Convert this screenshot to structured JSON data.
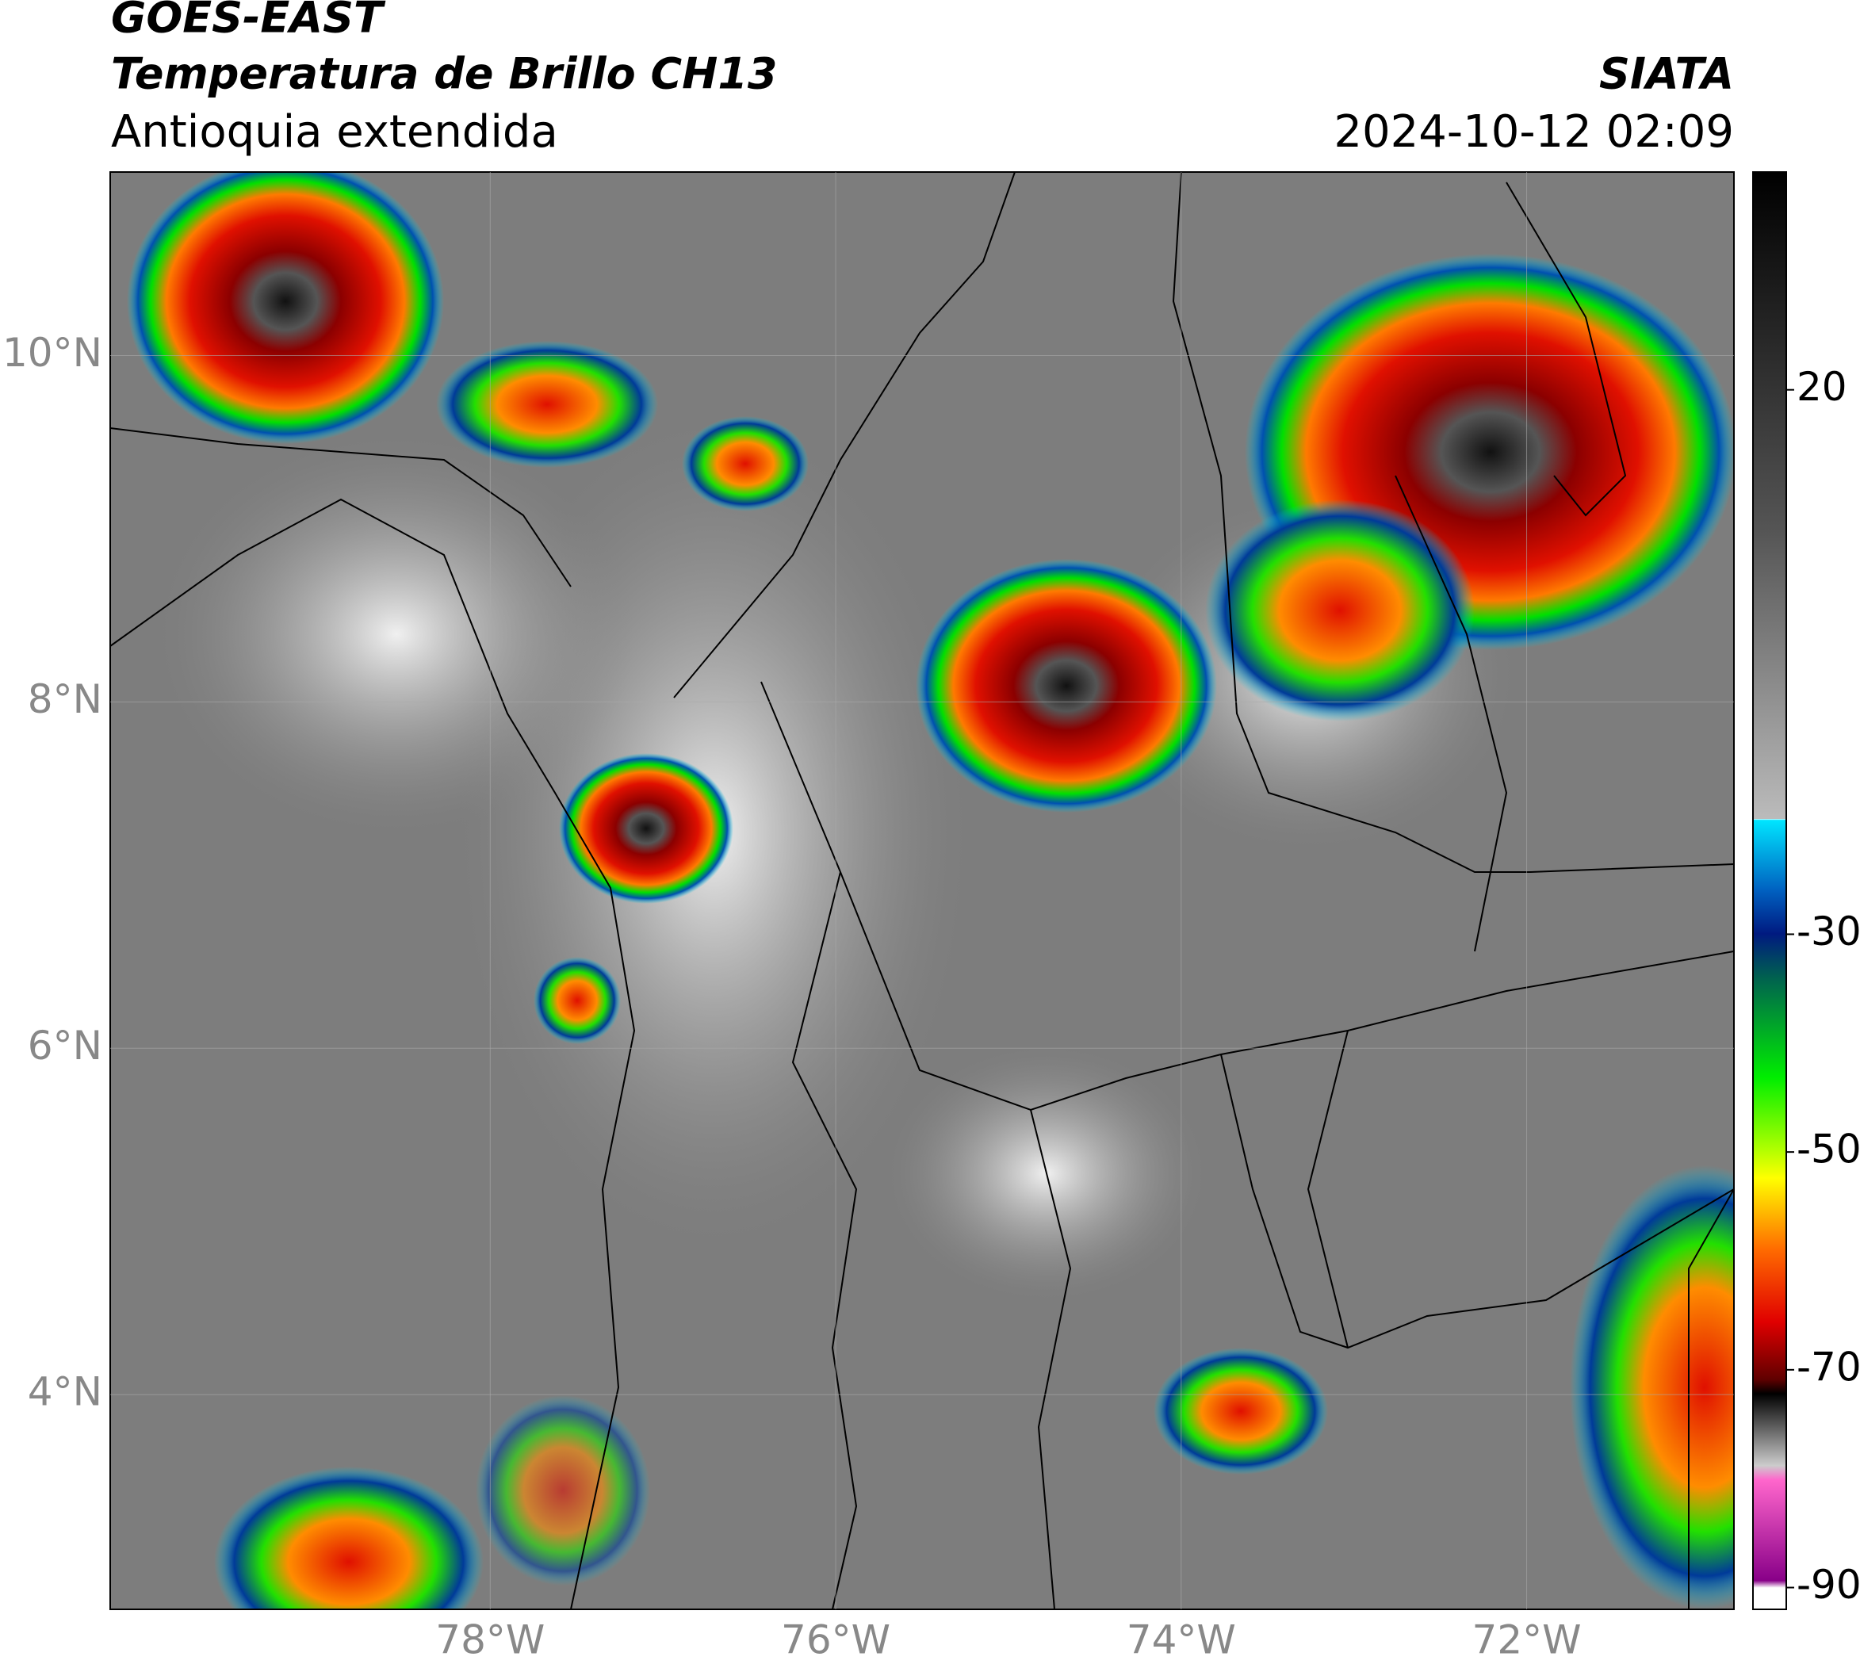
{
  "header": {
    "title": "GOES-EAST",
    "subtitle": "Temperatura de Brillo CH13",
    "region": "Antioquia extendida",
    "organization": "SIATA",
    "timestamp": "2024-10-12 02:09"
  },
  "map": {
    "xlim": [
      -80.2,
      -70.8
    ],
    "ylim": [
      2.76,
      11.06
    ],
    "xticks": [
      {
        "value": -78,
        "label": "78°W"
      },
      {
        "value": -76,
        "label": "76°W"
      },
      {
        "value": -74,
        "label": "74°W"
      },
      {
        "value": -72,
        "label": "72°W"
      }
    ],
    "yticks": [
      {
        "value": 4,
        "label": "4°N"
      },
      {
        "value": 6,
        "label": "6°N"
      },
      {
        "value": 8,
        "label": "8°N"
      },
      {
        "value": 10,
        "label": "10°N"
      }
    ],
    "grid": true
  },
  "colorbar": {
    "lim": [
      -92,
      40
    ],
    "ticks": [
      20,
      -30,
      -50,
      -70,
      -90
    ]
  }
}
